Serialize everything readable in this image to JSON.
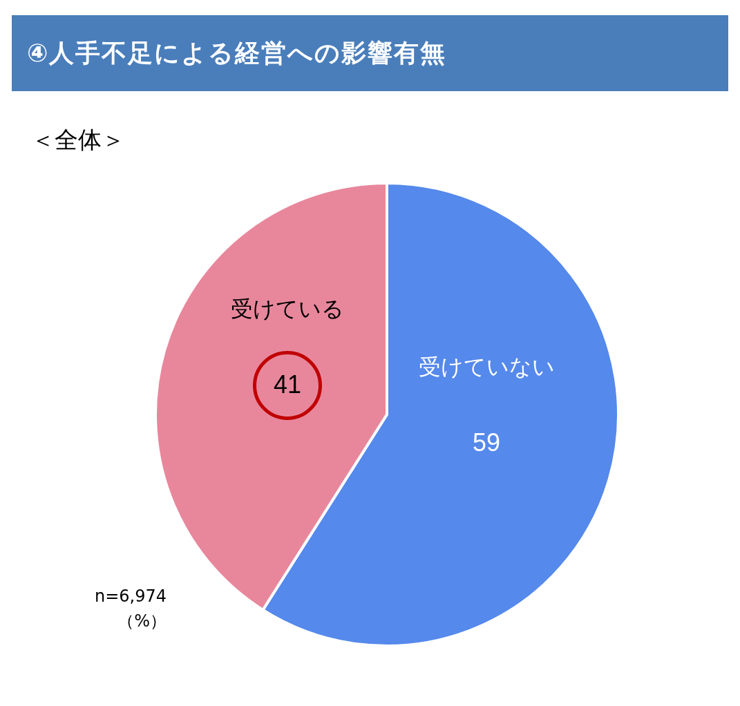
{
  "chart_data": {
    "type": "pie",
    "title": "④人手不足による経営への影響有無",
    "subtitle": "＜全体＞",
    "categories": [
      "受けていない",
      "受けている"
    ],
    "values": [
      59,
      41
    ],
    "colors": [
      "#5589eb",
      "#e8879c"
    ],
    "data_labels": true,
    "annotations": [
      "n=6,974",
      "（%）"
    ]
  }
}
